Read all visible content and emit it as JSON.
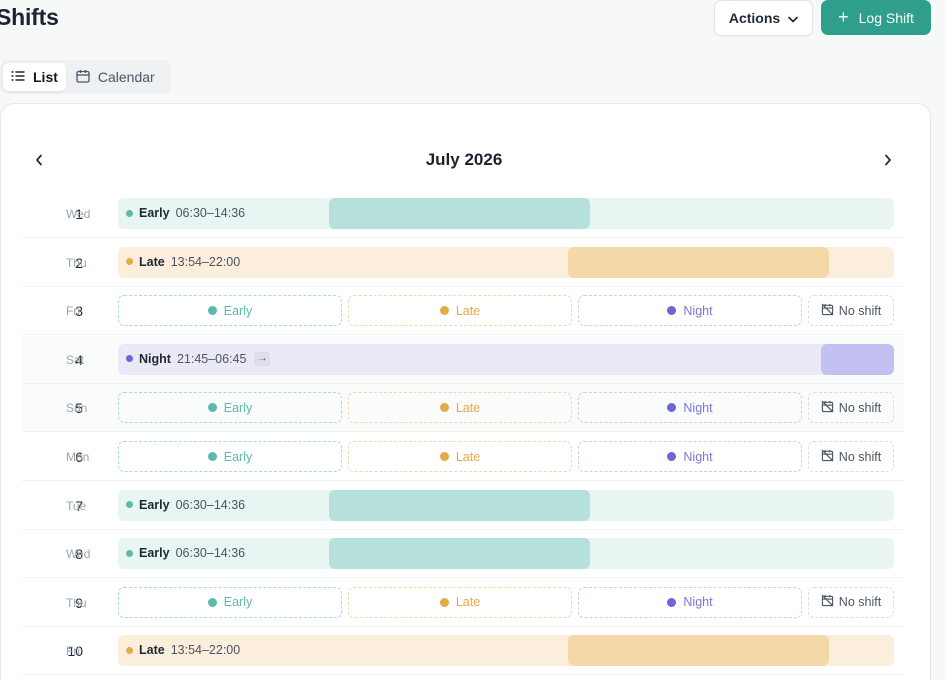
{
  "page": {
    "title": "Shifts"
  },
  "header": {
    "actions_label": "Actions",
    "log_shift_label": "Log Shift"
  },
  "view_toggle": {
    "list_label": "List",
    "calendar_label": "Calendar",
    "active": "list"
  },
  "calendar": {
    "month_label": "July 2026"
  },
  "colors": {
    "early": "#5fb8aa",
    "late": "#e5a94a",
    "night": "#6b66d8",
    "primary": "#2f9e8b"
  },
  "shift_options": {
    "early": "Early",
    "late": "Late",
    "night": "Night",
    "none": "No shift"
  },
  "days": [
    {
      "num": "1",
      "weekday": "Wed",
      "shift": {
        "type": "early",
        "name": "Early",
        "time": "06:30–14:36"
      }
    },
    {
      "num": "2",
      "weekday": "Thu",
      "shift": {
        "type": "late",
        "name": "Late",
        "time": "13:54–22:00"
      }
    },
    {
      "num": "3",
      "weekday": "Fri",
      "shift": null
    },
    {
      "num": "4",
      "weekday": "Sat",
      "shift": {
        "type": "night",
        "name": "Night",
        "time": "21:45–06:45",
        "overnight": true
      }
    },
    {
      "num": "5",
      "weekday": "Sun",
      "shift": null
    },
    {
      "num": "6",
      "weekday": "Mon",
      "shift": null
    },
    {
      "num": "7",
      "weekday": "Tue",
      "shift": {
        "type": "early",
        "name": "Early",
        "time": "06:30–14:36"
      }
    },
    {
      "num": "8",
      "weekday": "Wed",
      "shift": {
        "type": "early",
        "name": "Early",
        "time": "06:30–14:36"
      }
    },
    {
      "num": "9",
      "weekday": "Thu",
      "shift": null
    },
    {
      "num": "10",
      "weekday": "Fri",
      "shift": {
        "type": "late",
        "name": "Late",
        "time": "13:54–22:00"
      }
    }
  ]
}
